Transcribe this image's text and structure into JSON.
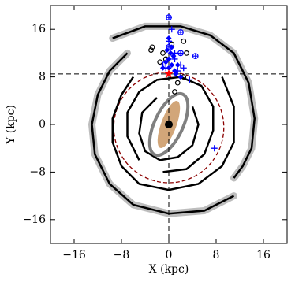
{
  "chart_data": {
    "type": "scatter",
    "xlabel": "X (kpc)",
    "ylabel": "Y (kpc)",
    "xlim": [
      -20,
      20
    ],
    "ylim": [
      -20,
      20
    ],
    "xticks": [
      {
        "value": -16,
        "label": "−16"
      },
      {
        "value": -8,
        "label": "−8"
      },
      0,
      8,
      16
    ],
    "yticks": [
      {
        "value": -16,
        "label": "−16"
      },
      {
        "value": -8,
        "label": "−8"
      },
      0,
      8,
      16
    ],
    "sun": {
      "x": 0,
      "y": 8.5,
      "color": "#ff0000"
    },
    "circle": {
      "x": 0,
      "y": -0.5,
      "r": 9.3,
      "color": "#8b0000"
    },
    "bar": {
      "x": 0,
      "y": 0,
      "rx": 1.3,
      "ry": 4.2,
      "angle": 20,
      "color": "#d2a679"
    },
    "ring": {
      "x": 0,
      "y": 0,
      "rx": 2.4,
      "ry": 5.6,
      "angle": 25,
      "color": "#808080"
    },
    "center": {
      "x": 0,
      "y": 0,
      "color": "#000000"
    },
    "arms": [
      {
        "band": true,
        "x": [
          11,
          6,
          0,
          -6,
          -10,
          -12.5,
          -13,
          -12,
          -10,
          -7
        ],
        "y": [
          -12,
          -14.5,
          -15,
          -13.5,
          -10,
          -5,
          0,
          5,
          9,
          12
        ]
      },
      {
        "band": true,
        "x": [
          -9.5,
          -4,
          2,
          7,
          11,
          13.5,
          14.5,
          14,
          12.5,
          11
        ],
        "y": [
          14.5,
          16.5,
          16.5,
          15,
          12,
          7,
          1,
          -4,
          -7,
          -9
        ]
      },
      {
        "band": false,
        "x": [
          9,
          11,
          11,
          9,
          5,
          0,
          -5,
          -8,
          -9.5,
          -9.5,
          -8,
          -6
        ],
        "y": [
          8,
          3,
          -3,
          -7,
          -10,
          -11,
          -10,
          -7,
          -3,
          1,
          5,
          8
        ]
      },
      {
        "band": false,
        "x": [
          -5,
          -7,
          -7,
          -5,
          -2,
          2,
          5.5,
          7.5,
          7.5,
          6,
          3,
          -1
        ],
        "y": [
          -6,
          -2,
          2,
          5.5,
          7.5,
          8,
          6.5,
          3,
          -1,
          -5,
          -7.5,
          -8
        ]
      },
      {
        "band": false,
        "x": [
          4,
          5,
          4,
          1.5,
          -1.5,
          -4,
          -5,
          -4.5,
          -2
        ],
        "y": [
          3,
          0,
          -3.5,
          -5.5,
          -6,
          -4.5,
          -1.5,
          2,
          4.5
        ]
      }
    ],
    "markers": [
      {
        "marker": "circle",
        "color": "#000000",
        "x": [
          -3,
          -2.8,
          2.5,
          -1.5,
          -0.5,
          2.5,
          1,
          1.5,
          3,
          0.5,
          -1
        ],
        "y": [
          12.5,
          13,
          14,
          10.5,
          11,
          8,
          5.5,
          7,
          12,
          13.5,
          12
        ]
      },
      {
        "marker": "diamond",
        "color": "#0000ff",
        "x": [
          0,
          0.5,
          1,
          -0.5,
          0,
          1.5,
          0.8,
          -1,
          0.3,
          1.2,
          2,
          0.5,
          -0.3,
          0
        ],
        "y": [
          9.5,
          10,
          9,
          10.5,
          11,
          10,
          11.5,
          9.5,
          12,
          8.5,
          8,
          13,
          12.5,
          14.5
        ]
      },
      {
        "marker": "plus",
        "color": "#0000ff",
        "x": [
          0,
          0,
          1,
          3.5,
          7.7,
          1.5,
          2,
          -1,
          0.5,
          1,
          2.5,
          -0.5
        ],
        "y": [
          18,
          14,
          12,
          7.5,
          -4,
          9,
          10,
          10,
          16,
          11,
          9.5,
          9.5
        ]
      },
      {
        "marker": "circled-plus",
        "color": "#0000ff",
        "x": [
          0,
          2,
          2,
          4.5,
          0
        ],
        "y": [
          18,
          15.5,
          12,
          11.5,
          13
        ]
      }
    ]
  }
}
